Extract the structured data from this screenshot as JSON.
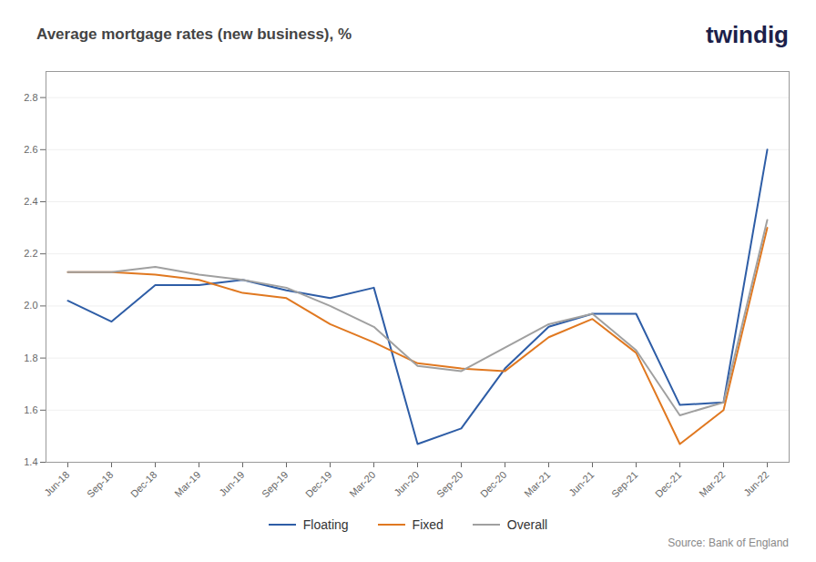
{
  "chart_data": {
    "type": "line",
    "title": "Average mortgage rates (new business), %",
    "annotations": [
      {
        "text": "twindig",
        "color": "#1C1F4A"
      },
      {
        "text": "Source: Bank of England"
      }
    ],
    "categories": [
      "Jun-18",
      "Sep-18",
      "Dec-18",
      "Mar-19",
      "Jun-19",
      "Sep-19",
      "Dec-19",
      "Mar-20",
      "Jun-20",
      "Sep-20",
      "Dec-20",
      "Mar-21",
      "Jun-21",
      "Sep-21",
      "Dec-21",
      "Mar-22",
      "Jun-22"
    ],
    "series": [
      {
        "name": "Floating",
        "color": "#2E5DA6",
        "values": [
          2.02,
          1.94,
          2.08,
          2.08,
          2.1,
          2.06,
          2.03,
          2.07,
          1.47,
          1.53,
          1.76,
          1.92,
          1.97,
          1.97,
          1.62,
          1.63,
          2.6
        ]
      },
      {
        "name": "Fixed",
        "color": "#E07820",
        "values": [
          2.13,
          2.13,
          2.12,
          2.1,
          2.05,
          2.03,
          1.93,
          1.86,
          1.78,
          1.76,
          1.75,
          1.88,
          1.95,
          1.82,
          1.47,
          1.6,
          2.3
        ]
      },
      {
        "name": "Overall",
        "color": "#A0A0A0",
        "values": [
          2.13,
          2.13,
          2.15,
          2.12,
          2.1,
          2.07,
          2.0,
          1.92,
          1.77,
          1.75,
          1.84,
          1.93,
          1.97,
          1.83,
          1.58,
          1.63,
          2.33
        ]
      }
    ],
    "ylim": [
      1.4,
      2.9
    ],
    "yticks": [
      1.4,
      1.6,
      1.8,
      {
        "value": 2.0,
        "label": "2.0"
      },
      2.2,
      2.4,
      2.6,
      2.8
    ],
    "grid": true,
    "legend": "bottom"
  }
}
